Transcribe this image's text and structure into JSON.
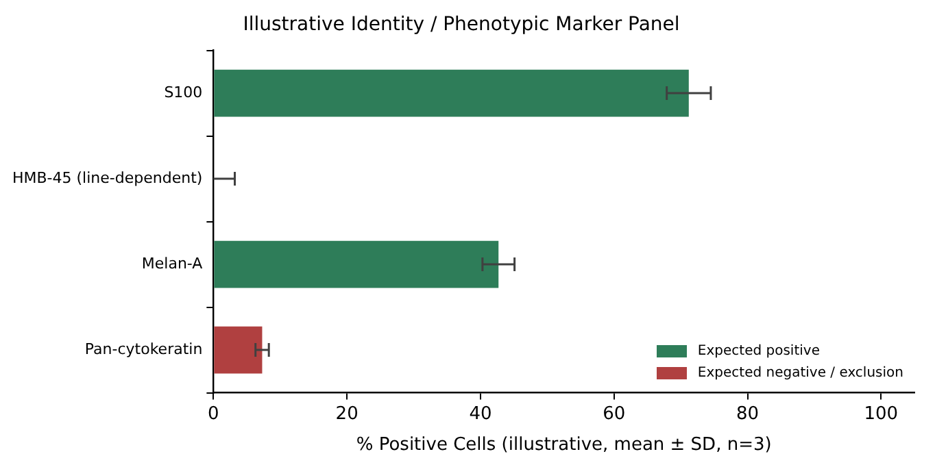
{
  "chart_data": {
    "type": "bar",
    "orientation": "horizontal",
    "title": "Illustrative Identity / Phenotypic Marker Panel",
    "xlabel": "% Positive Cells (illustrative, mean ± SD, n=3)",
    "categories": [
      "S100",
      "HMB-45 (line-dependent)",
      "Melan-A",
      "Pan-cytokeratin"
    ],
    "series": [
      {
        "name": "Expected positive",
        "color": "#2e7d59",
        "values": [
          71.2,
          0,
          42.7,
          null
        ],
        "errors": [
          3.3,
          3.2,
          2.4,
          null
        ]
      },
      {
        "name": "Expected negative / exclusion",
        "color": "#b04040",
        "values": [
          null,
          null,
          null,
          7.3
        ],
        "errors": [
          null,
          null,
          null,
          1.0
        ]
      }
    ],
    "xlim": [
      0,
      105
    ],
    "xticks": [
      0,
      20,
      40,
      60,
      80,
      100
    ],
    "grid": false,
    "legend": "bottom right"
  }
}
